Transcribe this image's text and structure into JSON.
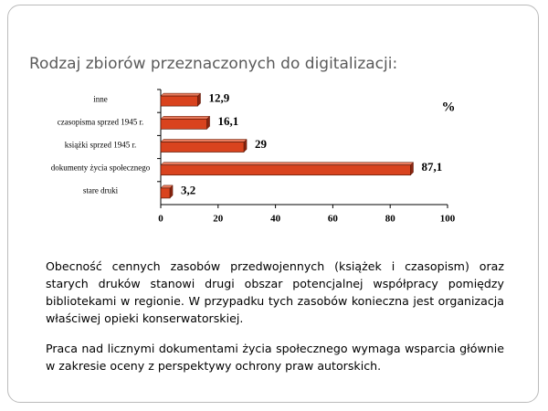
{
  "chart_data": {
    "type": "bar",
    "orientation": "horizontal",
    "title": "Rodzaj zbiorów przeznaczonych do digitalizacji:",
    "unit": "%",
    "categories": [
      "inne",
      "czasopisma sprzed 1945 r.",
      "książki sprzed 1945 r.",
      "dokumenty życia społecznego",
      "stare druki"
    ],
    "values": [
      12.9,
      16.1,
      29,
      87.1,
      3.2
    ],
    "value_labels": [
      "12,9",
      "16,1",
      "29",
      "87,1",
      "3,2"
    ],
    "color": "#d9431e",
    "xlim": [
      0,
      100
    ],
    "xticks": [
      0,
      20,
      40,
      60,
      80,
      100
    ],
    "grid": false
  },
  "text": {
    "paragraphs": [
      "Obecność cennych zasobów przedwojennych (książek i czasopism) oraz starych druków stanowi drugi obszar potencjalnej współpracy pomiędzy bibliotekami w regionie. W przypadku tych zasobów konieczna jest organizacja właściwej opieki konserwatorskiej.",
      "Praca nad licznymi dokumentami życia społecznego wymaga wsparcia głównie w zakresie oceny z perspektywy ochrony praw autorskich."
    ]
  }
}
